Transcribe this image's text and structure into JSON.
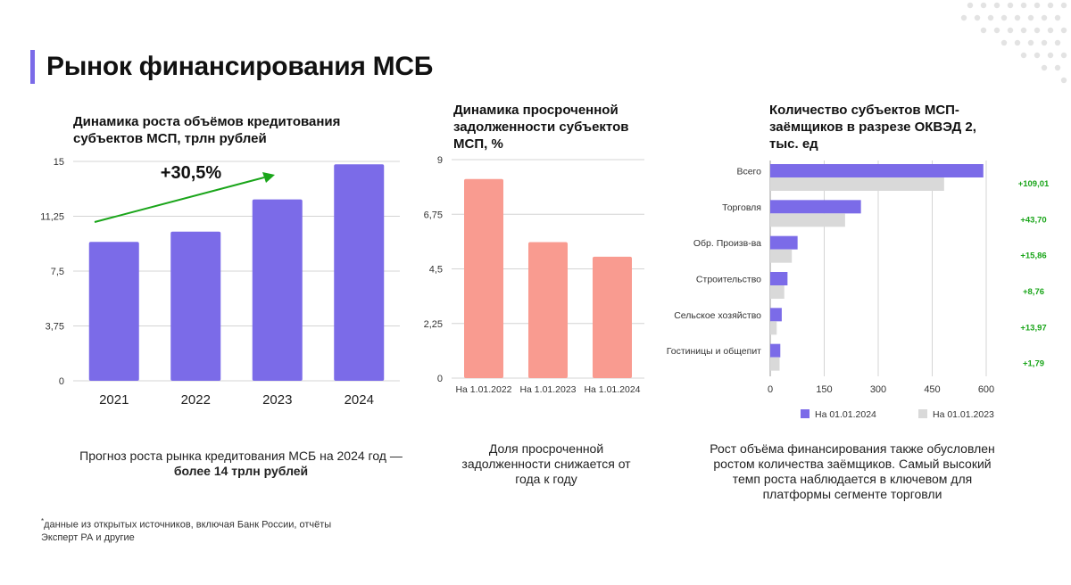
{
  "page": {
    "title": "Рынок финансирования МСБ",
    "footnote_mark": "*",
    "footnote": "данные из открытых источников, включая Банк России, отчёты Эксперт РА и другие"
  },
  "captions": {
    "left_text": "Прогноз роста рынка кредитования МСБ на 2024 год — ",
    "left_bold": "более 14 трлн рублей",
    "middle": "Доля просроченной задолженности снижается от года к году",
    "right": "Рост объёма финансирования также обусловлен ростом количества заёмщиков. Самый высокий темп роста наблюдается в ключевом для платформы сегменте торговли"
  },
  "colors": {
    "purple": "#7b6be8",
    "salmon": "#f99b90",
    "gray": "#d9d9d9",
    "green": "#1aa51a",
    "accent": "#7b6be8"
  },
  "chart_data": [
    {
      "type": "bar",
      "title": "Динамика роста объёмов кредитования субъектов МСП, трлн рублей",
      "categories": [
        "2021",
        "2022",
        "2023",
        "2024"
      ],
      "values": [
        9.5,
        10.2,
        12.4,
        14.8
      ],
      "yticks": [
        "15",
        "11,25",
        "7,5",
        "3,75",
        "0"
      ],
      "ylim": [
        0,
        15
      ],
      "annotation": "+30,5%",
      "grid": true
    },
    {
      "type": "bar",
      "title": "Динамика просроченной задолженности субъектов МСП, %",
      "categories": [
        "На 1.01.2022",
        "На 1.01.2023",
        "На 1.01.2024"
      ],
      "values": [
        8.2,
        5.6,
        5.0
      ],
      "yticks": [
        "9",
        "6,75",
        "4,5",
        "2,25",
        "0"
      ],
      "ylim": [
        0,
        9
      ],
      "grid": true
    },
    {
      "type": "bar",
      "orientation": "horizontal",
      "title": "Количество субъектов МСП-заёмщиков в разрезе ОКВЭД 2, тыс. ед",
      "categories": [
        "Всего",
        "Торговля",
        "Обр. Произв-ва",
        "Строительство",
        "Сельское хозяйство",
        "Гостиницы и общепит"
      ],
      "series": [
        {
          "name": "На 01.01.2024",
          "values": [
            592,
            252,
            76,
            48,
            32,
            28
          ]
        },
        {
          "name": "На 01.01.2023",
          "values": [
            483,
            208,
            60,
            39,
            18,
            26
          ]
        }
      ],
      "deltas": [
        "+109,01",
        "+43,70",
        "+15,86",
        "+8,76",
        "+13,97",
        "+1,79"
      ],
      "xticks": [
        "0",
        "150",
        "300",
        "450",
        "600"
      ],
      "xlim": [
        0,
        600
      ],
      "legend": "bottom",
      "grid": true
    }
  ]
}
